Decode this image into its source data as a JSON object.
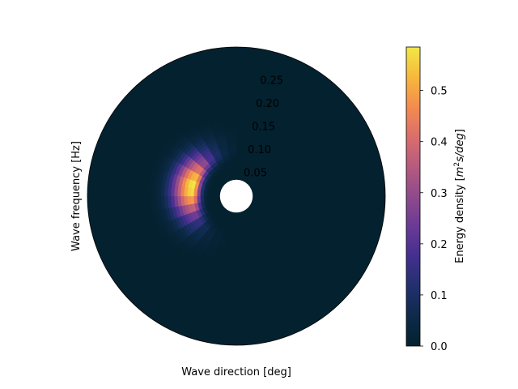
{
  "chart_data": {
    "type": "heatmap",
    "projection": "polar",
    "theta_zero_location": "N",
    "theta_direction": "clockwise",
    "xlabel": "Wave direction [deg]",
    "ylabel": "Wave frequency [Hz]",
    "r_ticks": [
      0.05,
      0.1,
      0.15,
      0.2,
      0.25
    ],
    "r_tick_labels": [
      "0.05",
      "0.10",
      "0.15",
      "0.20",
      "0.25"
    ],
    "r_tick_angle_deg": 10,
    "rlim": [
      0.0,
      0.318
    ],
    "hole_radius": 0.035,
    "frequency_bin_start": 0.035,
    "frequency_bin_step": 0.007,
    "direction_bin_step_deg": 10,
    "spectrum_peak": {
      "energy": 0.585,
      "frequency_hz": 0.095,
      "direction_deg": 282,
      "frequency_spread_below_hz": 0.012,
      "frequency_spread_above_hz": 0.03,
      "direction_spread_deg": 28,
      "sector_deg": [
        190,
        355
      ]
    },
    "colorbar": {
      "label": "Energy density [m²s/deg]",
      "label_parts": [
        "Energy density [",
        "m",
        "2",
        "s/deg",
        "]"
      ],
      "min": 0.0,
      "max": 0.585,
      "ticks": [
        0.0,
        0.1,
        0.2,
        0.3,
        0.4,
        0.5
      ],
      "tick_labels": [
        "0.0",
        "0.1",
        "0.2",
        "0.3",
        "0.4",
        "0.5"
      ]
    },
    "colormap": [
      "#04212f",
      "#0d2a4a",
      "#22306f",
      "#432f8f",
      "#6a3a96",
      "#8f4a8c",
      "#b65a7f",
      "#db6e6c",
      "#f38c4e",
      "#f8b83c",
      "#f1e847"
    ]
  }
}
